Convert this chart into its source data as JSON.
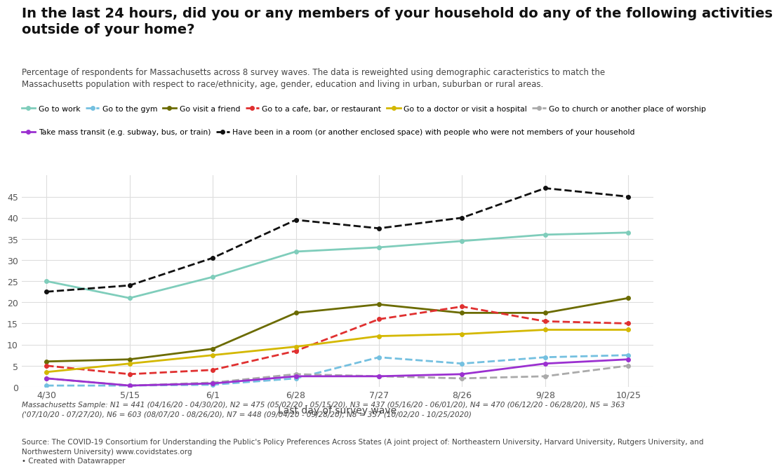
{
  "title": "In the last 24 hours, did you or any members of your household do any of the following activities\noutside of your home?",
  "subtitle": "Percentage of respondents for Massachusetts across 8 survey waves. The data is reweighted using demographic caracteristics to match the\nMassachusetts population with respect to race/ethnicity, age, gender, education and living in urban, suburban or rural areas.",
  "xlabel": "Last day of survey wave",
  "x_labels": [
    "4/30",
    "5/15",
    "6/1",
    "6/28",
    "7/27",
    "8/26",
    "9/28",
    "10/25"
  ],
  "x_positions": [
    0,
    1,
    2,
    3,
    4,
    5,
    6,
    7
  ],
  "footnote1": "Massachusetts Sample: N1 = 441 (04/16/20 - 04/30/20), N2 = 475 (05/02/20 - 05/15/20), N3 = 437 (05/16/20 - 06/01/20), N4 = 470 (06/12/20 - 06/28/20), N5 = 363\n('07/10/20 - 07/27/20), N6 = 603 (08/07/20 - 08/26/20), N7 = 448 (09/04/20 - 09/28/20), N8 = 357 (10/02/20 - 10/25/2020)",
  "footnote2": "Source: The COVID-19 Consortium for Understanding the Public's Policy Preferences Across States (A joint project of: Northeastern University, Harvard University, Rutgers University, and\nNorthwestern University) www.covidstates.org\n• Created with Datawrapper",
  "series": [
    {
      "label": "Go to work",
      "color": "#7fcdbb",
      "linestyle": "solid",
      "marker": "o",
      "markersize": 4,
      "linewidth": 2,
      "values": [
        25.0,
        21.0,
        26.0,
        32.0,
        33.0,
        34.5,
        36.0,
        36.5
      ]
    },
    {
      "label": "Go to the gym",
      "color": "#74c0e0",
      "linestyle": "dashed",
      "marker": "o",
      "markersize": 4,
      "linewidth": 2,
      "values": [
        0.3,
        0.3,
        0.5,
        2.0,
        7.0,
        5.5,
        7.0,
        7.5
      ]
    },
    {
      "label": "Go visit a friend",
      "color": "#6b6b00",
      "linestyle": "solid",
      "marker": "o",
      "markersize": 4,
      "linewidth": 2,
      "values": [
        6.0,
        6.5,
        9.0,
        17.5,
        19.5,
        17.5,
        17.5,
        21.0
      ]
    },
    {
      "label": "Go to a cafe, bar, or restaurant",
      "color": "#e03030",
      "linestyle": "dashed",
      "marker": "o",
      "markersize": 4,
      "linewidth": 2,
      "values": [
        5.0,
        3.0,
        4.0,
        8.5,
        16.0,
        19.0,
        15.5,
        15.0
      ]
    },
    {
      "label": "Go to a doctor or visit a hospital",
      "color": "#d4b800",
      "linestyle": "solid",
      "marker": "o",
      "markersize": 4,
      "linewidth": 2,
      "values": [
        3.5,
        5.5,
        7.5,
        9.5,
        12.0,
        12.5,
        13.5,
        13.5
      ]
    },
    {
      "label": "Go to church or another place of worship",
      "color": "#aaaaaa",
      "linestyle": "dashed",
      "marker": "o",
      "markersize": 4,
      "linewidth": 2,
      "values": [
        2.0,
        0.3,
        1.0,
        3.0,
        2.5,
        2.0,
        2.5,
        5.0
      ]
    },
    {
      "label": "Take mass transit (e.g. subway, bus, or train)",
      "color": "#9b30d0",
      "linestyle": "solid",
      "marker": "o",
      "markersize": 4,
      "linewidth": 2,
      "values": [
        2.0,
        0.3,
        0.8,
        2.5,
        2.5,
        3.0,
        5.5,
        6.5
      ]
    },
    {
      "label": "Have been in a room (or another enclosed space) with people who were not members of your household",
      "color": "#111111",
      "linestyle": "dashed",
      "marker": "o",
      "markersize": 4,
      "linewidth": 2,
      "values": [
        22.5,
        24.0,
        30.5,
        39.5,
        37.5,
        40.0,
        47.0,
        45.0
      ]
    }
  ],
  "ylim": [
    0,
    50
  ],
  "yticks": [
    0,
    5,
    10,
    15,
    20,
    25,
    30,
    35,
    40,
    45
  ],
  "background_color": "#ffffff",
  "grid_color": "#dddddd",
  "title_fontsize": 14,
  "subtitle_fontsize": 8.5,
  "legend_fontsize": 7.8,
  "footnote_fontsize": 7.5,
  "axis_fontsize": 9
}
